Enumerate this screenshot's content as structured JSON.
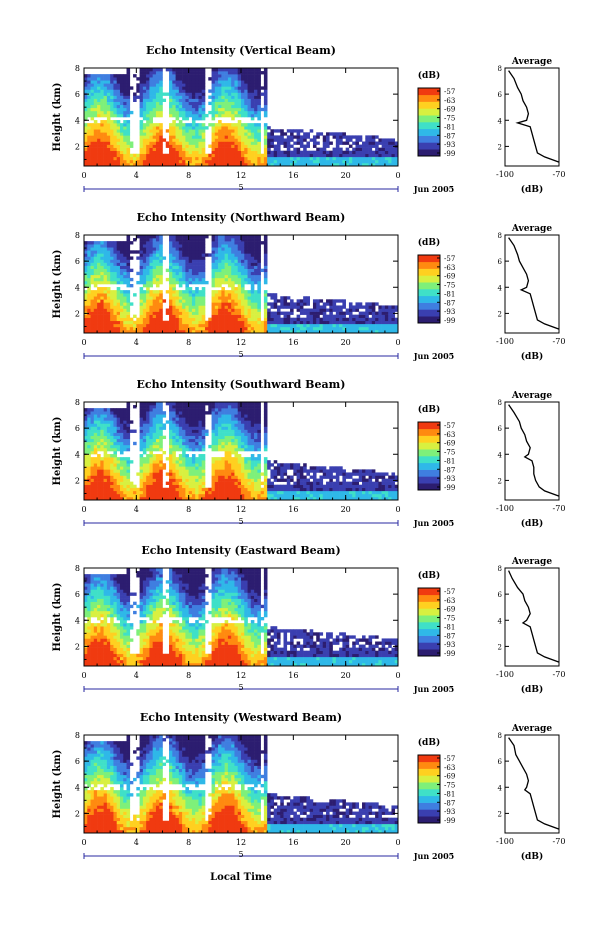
{
  "figure": {
    "xlabel": "Local Time",
    "colorbar_title": "(dB)",
    "colorbar_ticks": [
      "-57",
      "-63",
      "-69",
      "-75",
      "-81",
      "-87",
      "-93",
      "-99"
    ],
    "avg_title": "Average",
    "avg_xlabel": "(dB)",
    "avg_xticks": [
      "-100",
      "-70"
    ],
    "date_label": "Jun 2005",
    "day_label": "5",
    "colormap": [
      "#2c1d70",
      "#3a3fb0",
      "#3f7ee0",
      "#2fb8e8",
      "#3fe0c8",
      "#7ef07a",
      "#d8f040",
      "#ffd020",
      "#ff8a10",
      "#f03a10"
    ]
  },
  "chart_data": [
    {
      "type": "heatmap",
      "title": "Echo Intensity (Vertical Beam)",
      "ylabel": "Height (km)",
      "x_ticks": [
        "0",
        "4",
        "8",
        "12",
        "16",
        "20",
        "0"
      ],
      "y_ticks": [
        "2",
        "4",
        "6",
        "8"
      ],
      "xlim": [
        0,
        24
      ],
      "ylim": [
        0.5,
        8
      ],
      "clim": [
        -99,
        -57
      ],
      "average_profile": {
        "xlim": [
          -100,
          -70
        ],
        "ylim": [
          0.5,
          8
        ],
        "height": [
          7.8,
          7.2,
          6.5,
          6.0,
          5.5,
          5.0,
          4.5,
          4.0,
          3.8,
          3.5,
          3.0,
          2.5,
          2.0,
          1.5,
          1.2,
          0.8
        ],
        "db": [
          -98,
          -95,
          -93,
          -91,
          -90,
          -88,
          -87,
          -88,
          -93,
          -86,
          -85,
          -84,
          -83,
          -82,
          -78,
          -70
        ]
      }
    },
    {
      "type": "heatmap",
      "title": "Echo Intensity (Northward Beam)",
      "ylabel": "Height (km)",
      "x_ticks": [
        "0",
        "4",
        "8",
        "12",
        "16",
        "20",
        "0"
      ],
      "y_ticks": [
        "2",
        "4",
        "6",
        "8"
      ],
      "xlim": [
        0,
        24
      ],
      "ylim": [
        0.5,
        8
      ],
      "clim": [
        -99,
        -57
      ],
      "average_profile": {
        "xlim": [
          -100,
          -70
        ],
        "ylim": [
          0.5,
          8
        ],
        "height": [
          7.8,
          7.2,
          6.5,
          6.0,
          5.5,
          5.0,
          4.5,
          4.0,
          3.8,
          3.5,
          3.0,
          2.5,
          2.0,
          1.5,
          1.2,
          0.8
        ],
        "db": [
          -98,
          -95,
          -93,
          -92,
          -90,
          -88,
          -87,
          -88,
          -91,
          -86,
          -85,
          -84,
          -83,
          -82,
          -78,
          -70
        ]
      }
    },
    {
      "type": "heatmap",
      "title": "Echo Intensity (Southward Beam)",
      "ylabel": "Height (km)",
      "x_ticks": [
        "0",
        "4",
        "8",
        "12",
        "16",
        "20",
        "0"
      ],
      "y_ticks": [
        "2",
        "4",
        "6",
        "8"
      ],
      "xlim": [
        0,
        24
      ],
      "ylim": [
        0.5,
        8
      ],
      "clim": [
        -99,
        -57
      ],
      "average_profile": {
        "xlim": [
          -100,
          -70
        ],
        "ylim": [
          0.5,
          8
        ],
        "height": [
          7.8,
          7.2,
          6.5,
          6.0,
          5.5,
          5.0,
          4.5,
          4.0,
          3.8,
          3.5,
          3.0,
          2.5,
          2.0,
          1.5,
          1.2,
          0.8
        ],
        "db": [
          -98,
          -95,
          -92,
          -91,
          -89,
          -88,
          -86,
          -87,
          -89,
          -85,
          -84,
          -84,
          -83,
          -81,
          -78,
          -70
        ]
      }
    },
    {
      "type": "heatmap",
      "title": "Echo Intensity (Eastward Beam)",
      "ylabel": "Height (km)",
      "x_ticks": [
        "0",
        "4",
        "8",
        "12",
        "16",
        "20",
        "0"
      ],
      "y_ticks": [
        "2",
        "4",
        "6",
        "8"
      ],
      "xlim": [
        0,
        24
      ],
      "ylim": [
        0.5,
        8
      ],
      "clim": [
        -99,
        -57
      ],
      "average_profile": {
        "xlim": [
          -100,
          -70
        ],
        "ylim": [
          0.5,
          8
        ],
        "height": [
          7.8,
          7.2,
          6.5,
          6.0,
          5.5,
          5.0,
          4.5,
          4.0,
          3.8,
          3.5,
          3.0,
          2.5,
          2.0,
          1.5,
          1.2,
          0.8
        ],
        "db": [
          -98,
          -96,
          -93,
          -90,
          -89,
          -87,
          -86,
          -88,
          -90,
          -86,
          -85,
          -84,
          -83,
          -82,
          -78,
          -70
        ]
      }
    },
    {
      "type": "heatmap",
      "title": "Echo Intensity (Westward Beam)",
      "ylabel": "Height (km)",
      "x_ticks": [
        "0",
        "4",
        "8",
        "12",
        "16",
        "20",
        "0"
      ],
      "y_ticks": [
        "2",
        "4",
        "6",
        "8"
      ],
      "xlim": [
        0,
        24
      ],
      "ylim": [
        0.5,
        8
      ],
      "clim": [
        -99,
        -57
      ],
      "average_profile": {
        "xlim": [
          -100,
          -70
        ],
        "ylim": [
          0.5,
          8
        ],
        "height": [
          7.8,
          7.2,
          6.5,
          6.0,
          5.5,
          5.0,
          4.5,
          4.0,
          3.8,
          3.5,
          3.0,
          2.5,
          2.0,
          1.5,
          1.2,
          0.8
        ],
        "db": [
          -98,
          -95,
          -94,
          -92,
          -90,
          -88,
          -87,
          -88,
          -89,
          -86,
          -85,
          -84,
          -83,
          -82,
          -78,
          -70
        ]
      }
    }
  ]
}
